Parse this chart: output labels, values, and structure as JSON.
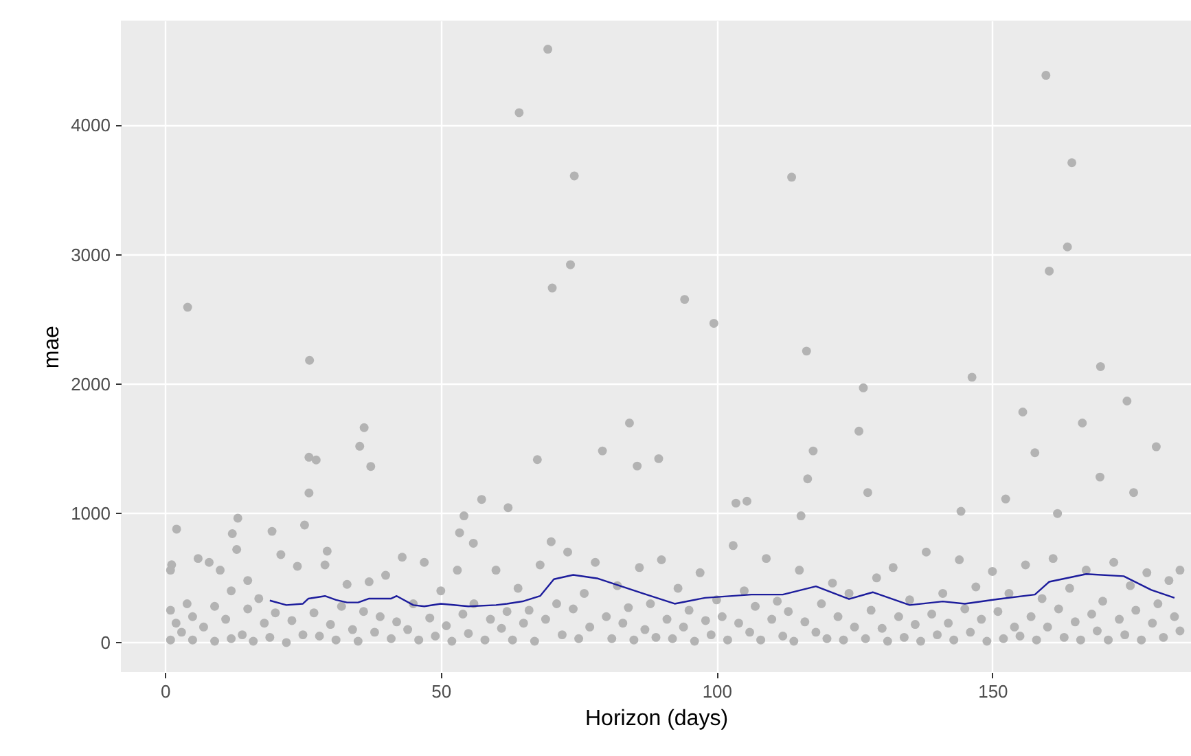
{
  "chart_data": {
    "type": "scatter",
    "xlabel": "Horizon (days)",
    "ylabel": "mae",
    "xlim": [
      -8,
      186
    ],
    "ylim": [
      -229,
      4810
    ],
    "xticks": [
      0,
      50,
      100,
      150
    ],
    "yticks": [
      0,
      1000,
      2000,
      3000,
      4000
    ],
    "grid": true,
    "marker": "circle",
    "series": [
      {
        "color": "#b3b3b3",
        "x": [
          4.1,
          26.2,
          64.2,
          69.4,
          74.2,
          73.5,
          70.2,
          159.7,
          164.4,
          113.6,
          163.6,
          160.3,
          94.2,
          99.5,
          116.3,
          169.6,
          146.3,
          126.6,
          125.8,
          174.4,
          155.5,
          166.3,
          179.7,
          84.2,
          79.3,
          85.6,
          89.5,
          117.5,
          116.5,
          127.4,
          157.7,
          169.5,
          175.6,
          152.4,
          103.5,
          105.5,
          115.3,
          144.3,
          161.8,
          2.1,
          1.2,
          13.2,
          12.2,
          19.4,
          26.1,
          27.4,
          26.1,
          25.3,
          35.3,
          36.1,
          37.3,
          57.4,
          62.2,
          54.2,
          53.4,
          67.5,
          55.9,
          29.4,
          1,
          1,
          1,
          2,
          3,
          4,
          5,
          5,
          6,
          7,
          8,
          9,
          9,
          10,
          11,
          12,
          12,
          13,
          14,
          15,
          15,
          16,
          17,
          18,
          19,
          20,
          21,
          22,
          23,
          24,
          25,
          27,
          28,
          29,
          30,
          31,
          32,
          33,
          34,
          35,
          36,
          37,
          38,
          39,
          40,
          41,
          42,
          43,
          44,
          45,
          46,
          47,
          48,
          49,
          50,
          51,
          52,
          53,
          54,
          55,
          56,
          58,
          59,
          60,
          61,
          62,
          63,
          64,
          65,
          66,
          67,
          68,
          69,
          70,
          71,
          72,
          73,
          74,
          75,
          76,
          77,
          78,
          80,
          81,
          82,
          83,
          84,
          85,
          86,
          87,
          88,
          89,
          90,
          91,
          92,
          93,
          94,
          95,
          96,
          97,
          98,
          99,
          100,
          101,
          102,
          103,
          104,
          105,
          106,
          107,
          108,
          109,
          110,
          111,
          112,
          113,
          114,
          115,
          116,
          118,
          119,
          120,
          121,
          122,
          123,
          124,
          125,
          127,
          128,
          129,
          130,
          131,
          132,
          133,
          134,
          135,
          136,
          137,
          138,
          139,
          140,
          141,
          142,
          143,
          144,
          145,
          146,
          147,
          148,
          149,
          150,
          151,
          152,
          153,
          154,
          155,
          156,
          157,
          158,
          159,
          160,
          161,
          162,
          163,
          164,
          165,
          166,
          167,
          168,
          169,
          170,
          171,
          172,
          173,
          174,
          175,
          176,
          177,
          178,
          179,
          180,
          181,
          182,
          183,
          184,
          184
        ],
        "values": [
          2593,
          2183,
          4098,
          4589,
          3609,
          2922,
          2742,
          4387,
          3711,
          3599,
          3060,
          2873,
          2654,
          2469,
          2254,
          2134,
          2052,
          1970,
          1635,
          1868,
          1783,
          1698,
          1514,
          1698,
          1482,
          1365,
          1422,
          1482,
          1266,
          1160,
          1468,
          1280,
          1160,
          1110,
          1078,
          1093,
          980,
          1015,
          998,
          877,
          601,
          962,
          842,
          860,
          1433,
          1412,
          1157,
          909,
          1518,
          1662,
          1362,
          1107,
          1043,
          980,
          849,
          1415,
          768,
          707,
          20,
          250,
          560,
          150,
          80,
          300,
          20,
          200,
          650,
          120,
          620,
          10,
          280,
          560,
          180,
          400,
          30,
          720,
          60,
          480,
          260,
          10,
          340,
          150,
          40,
          230,
          680,
          0,
          170,
          590,
          60,
          230,
          50,
          600,
          140,
          20,
          280,
          450,
          100,
          10,
          240,
          470,
          80,
          200,
          520,
          30,
          160,
          660,
          100,
          300,
          20,
          620,
          190,
          50,
          400,
          130,
          10,
          560,
          220,
          70,
          300,
          20,
          180,
          560,
          110,
          240,
          20,
          420,
          150,
          250,
          10,
          600,
          180,
          780,
          300,
          60,
          700,
          260,
          30,
          380,
          120,
          620,
          200,
          30,
          440,
          150,
          270,
          20,
          580,
          100,
          300,
          40,
          640,
          180,
          30,
          420,
          120,
          250,
          10,
          540,
          170,
          60,
          330,
          200,
          20,
          750,
          150,
          400,
          80,
          280,
          20,
          650,
          180,
          320,
          50,
          240,
          10,
          560,
          160,
          80,
          300,
          30,
          460,
          200,
          20,
          380,
          120,
          30,
          250,
          500,
          110,
          10,
          580,
          200,
          40,
          330,
          140,
          10,
          700,
          220,
          60,
          380,
          150,
          20,
          640,
          260,
          80,
          430,
          180,
          10,
          550,
          240,
          30,
          380,
          120,
          50,
          600,
          200,
          20,
          340,
          120,
          650,
          260,
          40,
          420,
          160,
          20,
          560,
          220,
          90,
          320,
          20,
          620,
          180,
          60,
          440,
          250,
          20,
          540,
          150,
          300,
          40,
          480,
          200,
          90,
          560
        ]
      },
      {
        "type": "line",
        "marker": "none",
        "color": "#1c1c9c",
        "x": [
          19,
          22,
          25,
          26,
          29,
          31,
          33,
          35,
          37,
          41,
          42,
          45,
          47,
          50,
          55,
          60,
          62,
          65,
          68,
          70.5,
          74,
          78.5,
          86.8,
          92.4,
          97.9,
          106.3,
          112,
          118,
          124,
          128.3,
          135,
          141,
          145,
          151,
          157.7,
          160.3,
          167,
          173.8,
          178.8,
          183
        ],
        "values": [
          325,
          290,
          300,
          340,
          360,
          330,
          310,
          310,
          340,
          340,
          360,
          290,
          280,
          300,
          280,
          290,
          300,
          320,
          360,
          490,
          523,
          495,
          378,
          300,
          346,
          371,
          371,
          435,
          336,
          389,
          290,
          318,
          300,
          336,
          371,
          470,
          530,
          513,
          407,
          346
        ]
      }
    ]
  }
}
